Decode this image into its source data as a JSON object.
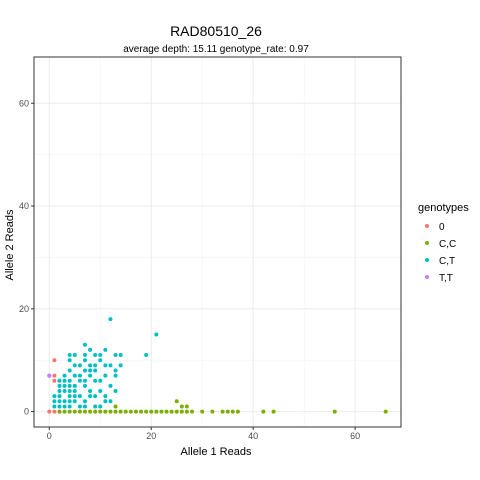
{
  "chart_data": {
    "type": "scatter",
    "title": "RAD80510_26",
    "subtitle": "average depth:  15.11  genotype_rate:  0.97",
    "xlabel": "Allele 1 Reads",
    "ylabel": "Allele 2 Reads",
    "xlim": [
      -3,
      69
    ],
    "ylim": [
      -3,
      69
    ],
    "xticks": [
      0,
      20,
      40,
      60
    ],
    "yticks": [
      0,
      20,
      40,
      60
    ],
    "grid": true,
    "legend": {
      "title": "genotypes",
      "position": "right"
    },
    "series": [
      {
        "name": "0",
        "color": "#F8766D",
        "points": [
          [
            0,
            0
          ],
          [
            0,
            7
          ],
          [
            1,
            0
          ],
          [
            1,
            6
          ],
          [
            1,
            7
          ],
          [
            1,
            10
          ],
          [
            2,
            0
          ]
        ]
      },
      {
        "name": "C,C",
        "color": "#7CAE00",
        "points": [
          [
            2,
            0
          ],
          [
            3,
            0
          ],
          [
            4,
            0
          ],
          [
            5,
            0
          ],
          [
            6,
            0
          ],
          [
            7,
            0
          ],
          [
            8,
            0
          ],
          [
            9,
            0
          ],
          [
            10,
            0
          ],
          [
            11,
            0
          ],
          [
            12,
            0
          ],
          [
            13,
            0
          ],
          [
            14,
            0
          ],
          [
            15,
            0
          ],
          [
            16,
            0
          ],
          [
            17,
            0
          ],
          [
            18,
            0
          ],
          [
            19,
            0
          ],
          [
            20,
            0
          ],
          [
            21,
            0
          ],
          [
            22,
            0
          ],
          [
            23,
            0
          ],
          [
            24,
            0
          ],
          [
            25,
            0
          ],
          [
            26,
            0
          ],
          [
            27,
            0
          ],
          [
            28,
            0
          ],
          [
            30,
            0
          ],
          [
            32,
            0
          ],
          [
            34,
            0
          ],
          [
            35,
            0
          ],
          [
            36,
            0
          ],
          [
            37,
            0
          ],
          [
            42,
            0
          ],
          [
            44,
            0
          ],
          [
            56,
            0
          ],
          [
            66,
            0
          ],
          [
            13,
            1
          ],
          [
            26,
            1
          ],
          [
            25,
            2
          ],
          [
            27,
            1
          ]
        ]
      },
      {
        "name": "C,T",
        "color": "#00BFC4",
        "points": [
          [
            1,
            1
          ],
          [
            1,
            2
          ],
          [
            1,
            3
          ],
          [
            2,
            1
          ],
          [
            2,
            2
          ],
          [
            2,
            3
          ],
          [
            2,
            4
          ],
          [
            2,
            5
          ],
          [
            2,
            6
          ],
          [
            3,
            1
          ],
          [
            3,
            2
          ],
          [
            3,
            4
          ],
          [
            3,
            5
          ],
          [
            3,
            6
          ],
          [
            3,
            7
          ],
          [
            4,
            1
          ],
          [
            4,
            2
          ],
          [
            4,
            3
          ],
          [
            4,
            4
          ],
          [
            4,
            5
          ],
          [
            4,
            6
          ],
          [
            4,
            8
          ],
          [
            4,
            10
          ],
          [
            4,
            11
          ],
          [
            5,
            2
          ],
          [
            5,
            3
          ],
          [
            5,
            4
          ],
          [
            5,
            5
          ],
          [
            5,
            7
          ],
          [
            5,
            9
          ],
          [
            5,
            11
          ],
          [
            6,
            1
          ],
          [
            6,
            3
          ],
          [
            6,
            6
          ],
          [
            6,
            7
          ],
          [
            6,
            9
          ],
          [
            7,
            1
          ],
          [
            7,
            2
          ],
          [
            7,
            5
          ],
          [
            7,
            6
          ],
          [
            7,
            8
          ],
          [
            7,
            10
          ],
          [
            7,
            11
          ],
          [
            7,
            13
          ],
          [
            8,
            3
          ],
          [
            8,
            4
          ],
          [
            8,
            7
          ],
          [
            8,
            8
          ],
          [
            8,
            9
          ],
          [
            8,
            12
          ],
          [
            9,
            1
          ],
          [
            9,
            3
          ],
          [
            9,
            6
          ],
          [
            9,
            8
          ],
          [
            9,
            9
          ],
          [
            9,
            11
          ],
          [
            10,
            1
          ],
          [
            10,
            4
          ],
          [
            10,
            6
          ],
          [
            10,
            10
          ],
          [
            10,
            11
          ],
          [
            11,
            2
          ],
          [
            11,
            3
          ],
          [
            11,
            7
          ],
          [
            11,
            9
          ],
          [
            11,
            12
          ],
          [
            12,
            2
          ],
          [
            12,
            5
          ],
          [
            12,
            9
          ],
          [
            12,
            18
          ],
          [
            13,
            4
          ],
          [
            13,
            7
          ],
          [
            13,
            8
          ],
          [
            13,
            11
          ],
          [
            14,
            9
          ],
          [
            14,
            11
          ],
          [
            19,
            11
          ],
          [
            21,
            15
          ]
        ]
      },
      {
        "name": "T,T",
        "color": "#C77CFF",
        "points": [
          [
            0,
            7
          ]
        ]
      }
    ]
  }
}
